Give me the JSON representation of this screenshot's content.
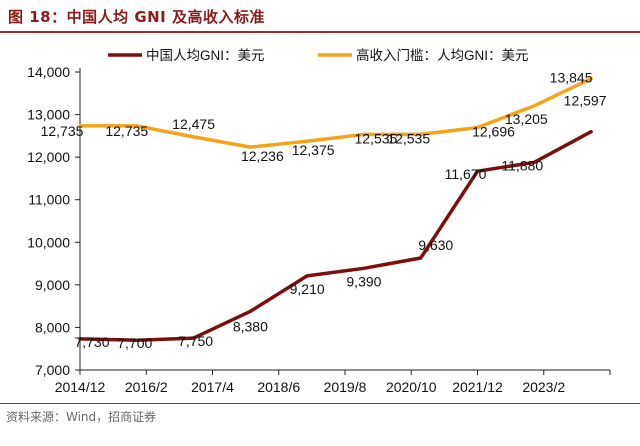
{
  "figure_title": "图 18：中国人均 GNI 及高收入标准",
  "source_note": "资料来源：Wind，招商证券",
  "chart_data": {
    "type": "line",
    "x": [
      "2014/12",
      "2016/2",
      "2017/4",
      "2018/6",
      "2019/8",
      "2020/10",
      "2021/12",
      "2023/2"
    ],
    "x_tick_labels": [
      "2014/12",
      "2016/2",
      "2017/4",
      "2018/6",
      "2019/8",
      "2020/10",
      "2021/12",
      "2023/2"
    ],
    "ylim": [
      7000,
      14000
    ],
    "y_ticks": [
      7000,
      8000,
      9000,
      10000,
      11000,
      12000,
      13000,
      14000
    ],
    "y_tick_labels": [
      "7,000",
      "8,000",
      "9,000",
      "10,000",
      "11,000",
      "12,000",
      "13,000",
      "14,000"
    ],
    "legend_position": "top",
    "series": [
      {
        "name": "中国人均GNI：美元",
        "color": "#7b0f0f",
        "points": [
          {
            "x": "2014/12",
            "y": 7730,
            "label": "7,730"
          },
          {
            "x": "2015/12",
            "y": 7700,
            "label": "7,700"
          },
          {
            "x": "2016/12",
            "y": 7750,
            "label": "7,750"
          },
          {
            "x": "2017/12",
            "y": 8380,
            "label": "8,380"
          },
          {
            "x": "2018/12",
            "y": 9210,
            "label": "9,210"
          },
          {
            "x": "2019/12",
            "y": 9390,
            "label": "9,390"
          },
          {
            "x": "2020/12",
            "y": 9630,
            "label": "9,630"
          },
          {
            "x": "2021/12",
            "y": 11670,
            "label": "11,670"
          },
          {
            "x": "2022/12",
            "y": 11880,
            "label": "11,880"
          },
          {
            "x": "2023/12",
            "y": 12597,
            "label": "12,597"
          }
        ]
      },
      {
        "name": "高收入门槛：人均GNI：美元",
        "color": "#f5a319",
        "points": [
          {
            "x": "2014/12",
            "y": 12735,
            "label": "12,735"
          },
          {
            "x": "2015/12",
            "y": 12735,
            "label": "12,735"
          },
          {
            "x": "2016/12",
            "y": 12475,
            "label": "12,475"
          },
          {
            "x": "2017/12",
            "y": 12236,
            "label": "12,236"
          },
          {
            "x": "2018/12",
            "y": 12375,
            "label": "12,375"
          },
          {
            "x": "2019/12",
            "y": 12535,
            "label": "12,535"
          },
          {
            "x": "2020/12",
            "y": 12535,
            "label": "12,535"
          },
          {
            "x": "2021/12",
            "y": 12696,
            "label": "12,696"
          },
          {
            "x": "2022/12",
            "y": 13205,
            "label": "13,205"
          },
          {
            "x": "2023/12",
            "y": 13845,
            "label": "13,845"
          }
        ]
      }
    ]
  }
}
